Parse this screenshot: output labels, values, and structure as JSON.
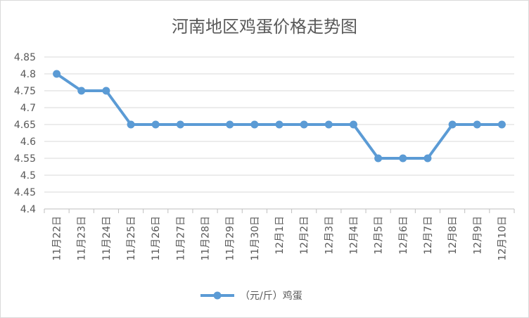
{
  "chart_data": {
    "type": "line",
    "title": "河南地区鸡蛋价格走势图",
    "xlabel": "",
    "ylabel": "",
    "categories": [
      "11月22日",
      "11月23日",
      "11月24日",
      "11月25日",
      "11月26日",
      "11月27日",
      "11月28日",
      "11月29日",
      "11月30日",
      "12月1日",
      "12月2日",
      "12月3日",
      "12月4日",
      "12月5日",
      "12月6日",
      "12月7日",
      "12月8日",
      "12月9日",
      "12月10日"
    ],
    "series": [
      {
        "name": "（元/斤）鸡蛋",
        "color": "#5b9bd5",
        "values": [
          4.8,
          4.75,
          4.75,
          4.65,
          4.65,
          4.65,
          null,
          4.65,
          4.65,
          4.65,
          4.65,
          4.65,
          4.65,
          4.55,
          4.55,
          4.55,
          4.65,
          4.65,
          4.65
        ]
      }
    ],
    "ylim": [
      4.4,
      4.85
    ],
    "yticks": [
      "4.4",
      "4.45",
      "4.5",
      "4.55",
      "4.6",
      "4.65",
      "4.7",
      "4.75",
      "4.8",
      "4.85"
    ],
    "grid": true,
    "legend_position": "bottom"
  }
}
